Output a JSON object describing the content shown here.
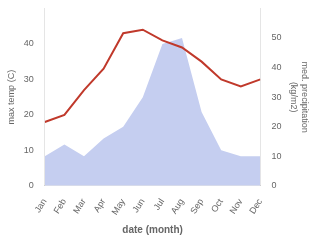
{
  "chart_data": {
    "type": "line",
    "categories": [
      "Jan",
      "Feb",
      "Mar",
      "Apr",
      "May",
      "Jun",
      "Jul",
      "Aug",
      "Sep",
      "Oct",
      "Nov",
      "Dec"
    ],
    "series": [
      {
        "type": "line",
        "color": "#c0392b",
        "values": [
          18,
          20,
          27,
          33,
          43,
          44,
          41,
          39,
          35,
          30,
          28,
          30
        ]
      },
      {
        "type": "area",
        "color": "#c5cef0",
        "axis": "y2",
        "values": [
          10,
          14,
          10,
          16,
          20,
          30,
          48,
          50,
          25,
          12,
          10,
          10
        ]
      }
    ],
    "xlabel": "date (month)",
    "ylabel": "max temp (C)",
    "y2label": "med. precipitation\n(kg/m2)",
    "ylim": [
      0,
      50
    ],
    "yticks": [
      0,
      10,
      20,
      30,
      40
    ],
    "y2lim": [
      0,
      60
    ],
    "y2ticks": [
      0,
      10,
      20,
      30,
      40,
      50
    ],
    "grid": false
  }
}
